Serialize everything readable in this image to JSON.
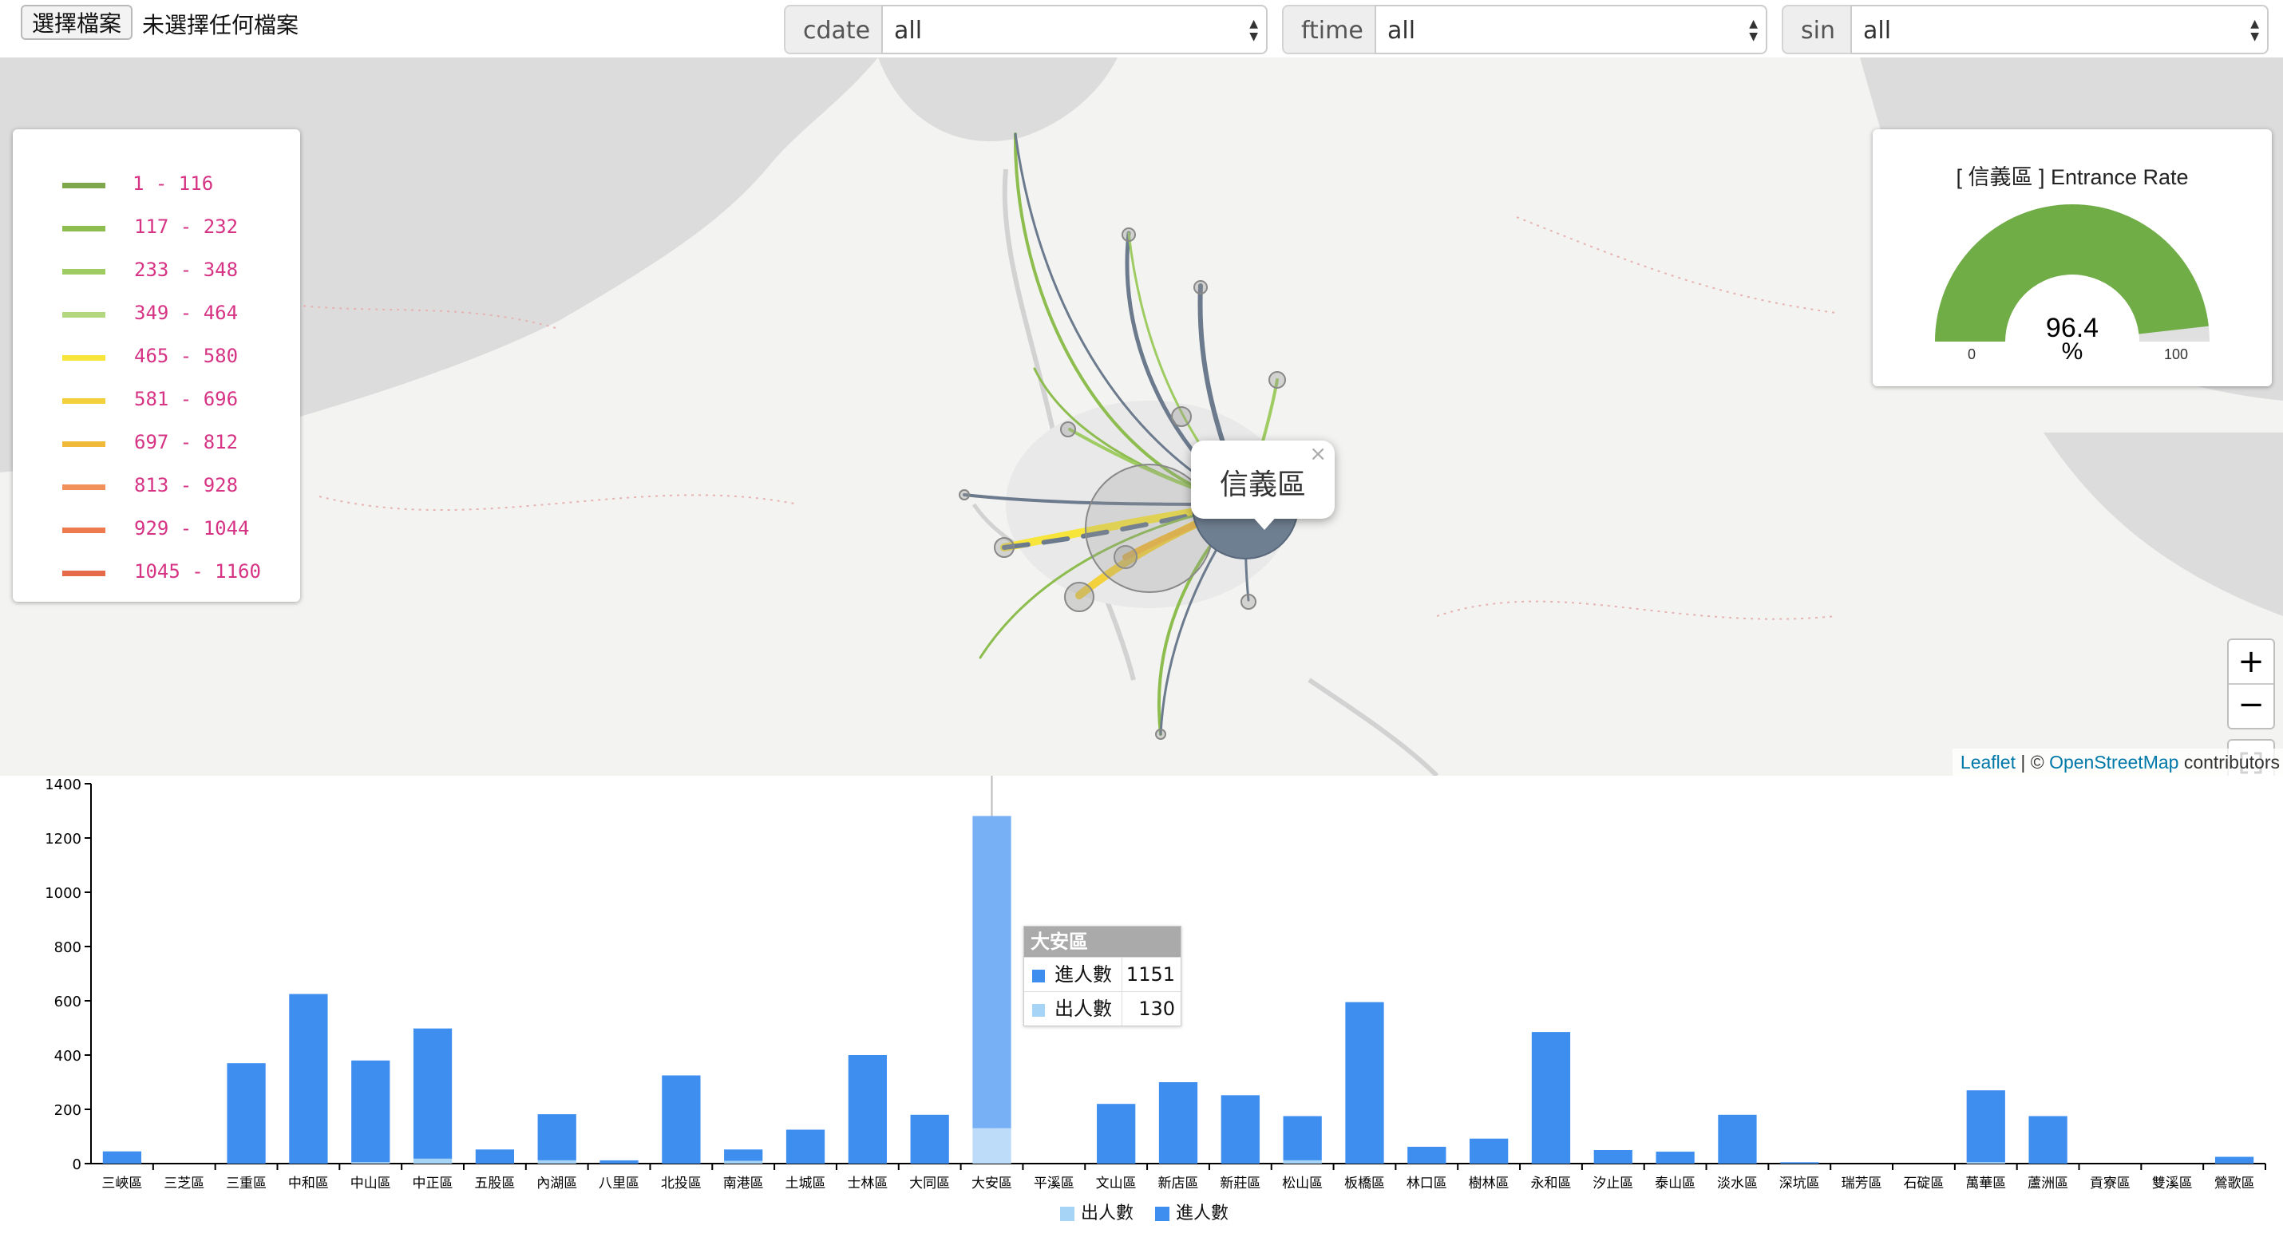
{
  "file_input": {
    "button_label": "選擇檔案",
    "status": "未選擇任何檔案"
  },
  "filters": [
    {
      "label": "cdate",
      "value": "all"
    },
    {
      "label": "ftime",
      "value": "all"
    },
    {
      "label": "sin",
      "value": "all"
    }
  ],
  "map": {
    "legend": [
      {
        "range": "1 - 116",
        "color": "#7fa84c"
      },
      {
        "range": "117 - 232",
        "color": "#8ebd4f"
      },
      {
        "range": "233 - 348",
        "color": "#9fcc62"
      },
      {
        "range": "349 - 464",
        "color": "#b3d77e"
      },
      {
        "range": "465 - 580",
        "color": "#f7e53c"
      },
      {
        "range": "581 - 696",
        "color": "#f3d13c"
      },
      {
        "range": "697 - 812",
        "color": "#f0b93a"
      },
      {
        "range": "813 - 928",
        "color": "#f2905c"
      },
      {
        "range": "929 - 1044",
        "color": "#ee7b4f"
      },
      {
        "range": "1045 - 1160",
        "color": "#e56a4a"
      }
    ],
    "popup": {
      "title": "信義區",
      "close": "×"
    },
    "gauge": {
      "title": "[ 信義區 ] Entrance Rate",
      "value": 96.4,
      "unit": "%",
      "min": 0,
      "max": 100,
      "color": "#70ad47"
    },
    "zoom_in": "+",
    "zoom_out": "−",
    "attribution": {
      "leaflet": "Leaflet",
      "separator": " | © ",
      "osm": "OpenStreetMap",
      "suffix": " contributors"
    }
  },
  "chart_data": {
    "type": "bar",
    "stacked": true,
    "categories": [
      "三峽區",
      "三芝區",
      "三重區",
      "中和區",
      "中山區",
      "中正區",
      "五股區",
      "內湖區",
      "八里區",
      "北投區",
      "南港區",
      "土城區",
      "士林區",
      "大同區",
      "大安區",
      "平溪區",
      "文山區",
      "新店區",
      "新莊區",
      "松山區",
      "板橋區",
      "林口區",
      "樹林區",
      "永和區",
      "汐止區",
      "泰山區",
      "淡水區",
      "深坑區",
      "瑞芳區",
      "石碇區",
      "萬華區",
      "蘆洲區",
      "貢寮區",
      "雙溪區",
      "鶯歌區"
    ],
    "series": [
      {
        "name": "出人數",
        "color": "#a6d4f7",
        "values": [
          0,
          0,
          0,
          0,
          5,
          18,
          0,
          12,
          0,
          0,
          10,
          0,
          0,
          0,
          130,
          0,
          0,
          0,
          0,
          12,
          0,
          0,
          0,
          0,
          0,
          0,
          0,
          0,
          0,
          0,
          5,
          0,
          0,
          0,
          0
        ]
      },
      {
        "name": "進人數",
        "color": "#3e8ef0",
        "values": [
          45,
          0,
          370,
          625,
          375,
          480,
          52,
          170,
          12,
          325,
          42,
          125,
          400,
          180,
          1151,
          0,
          220,
          300,
          252,
          163,
          595,
          62,
          92,
          485,
          50,
          44,
          180,
          5,
          0,
          0,
          265,
          175,
          0,
          0,
          25
        ]
      }
    ],
    "ylim": [
      0,
      1400
    ],
    "yticks": [
      "0",
      "200",
      "400",
      "600",
      "800",
      "1000",
      "1200",
      "1400"
    ],
    "highlight_category": "大安區",
    "tooltip": {
      "title": "大安區",
      "rows": [
        {
          "name": "進人數",
          "value": "1151"
        },
        {
          "name": "出人數",
          "value": "130"
        }
      ]
    }
  }
}
